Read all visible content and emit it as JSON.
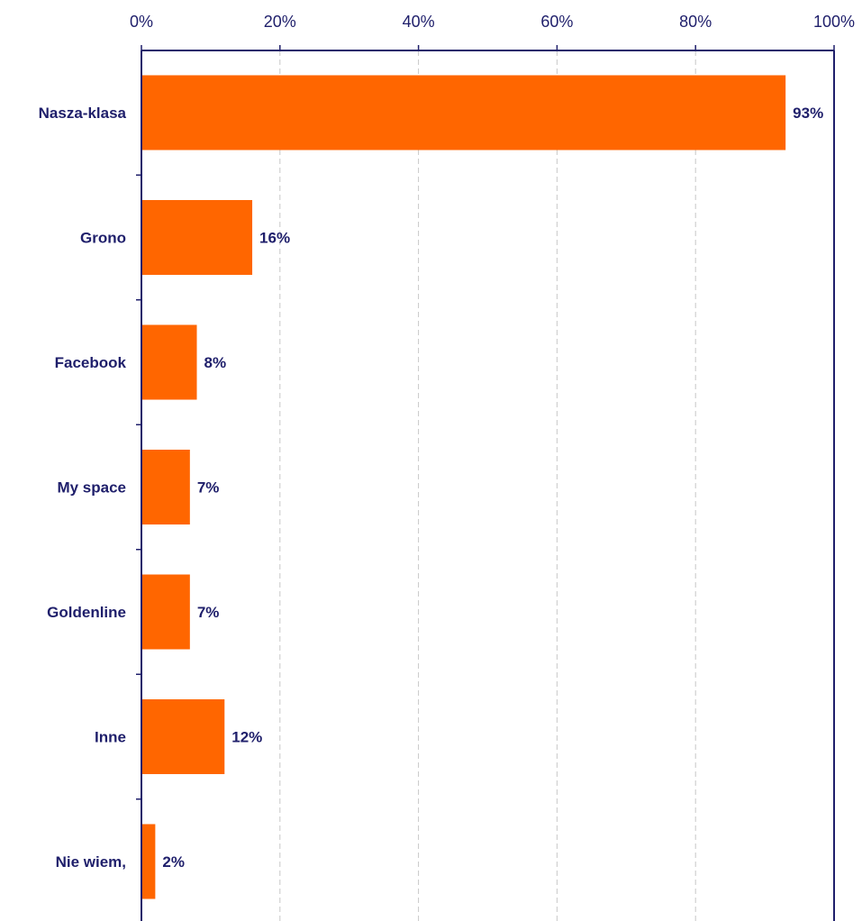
{
  "chart_data": {
    "type": "bar",
    "orientation": "horizontal",
    "categories": [
      "Nasza-klasa",
      "Grono",
      "Facebook",
      "My space",
      "Goldenline",
      "Inne",
      "Nie wiem,"
    ],
    "values": [
      93,
      16,
      8,
      7,
      7,
      12,
      2
    ],
    "value_labels": [
      "93%",
      "16%",
      "8%",
      "7%",
      "7%",
      "12%",
      "2%"
    ],
    "x_ticks": [
      "0%",
      "20%",
      "40%",
      "60%",
      "80%",
      "100%"
    ],
    "xlim": [
      0,
      100
    ],
    "title": "",
    "xlabel": "",
    "ylabel": "",
    "x_axis_position": "top",
    "grid": "vertical dashed",
    "legend": "none",
    "colors": {
      "bar": "#ff6600",
      "text": "#1f1f6b",
      "axis": "#1f1f6b",
      "grid": "#c8c8c8"
    }
  }
}
